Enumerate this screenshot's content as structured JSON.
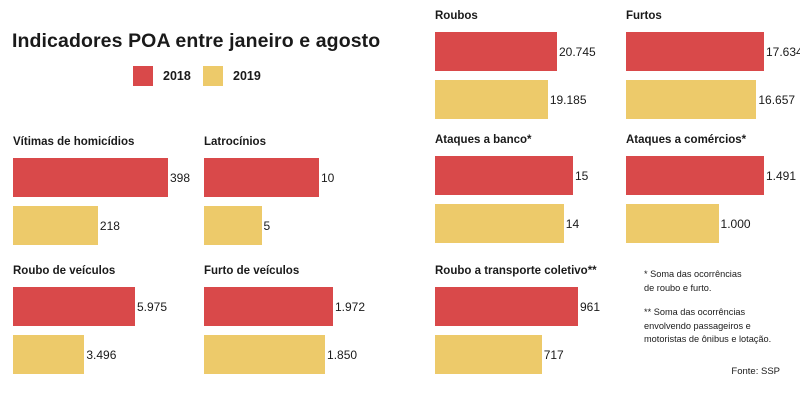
{
  "title": "Indicadores POA entre janeiro e agosto",
  "legend": [
    {
      "label": "2018",
      "color": "#d9494a"
    },
    {
      "label": "2019",
      "color": "#edca6a"
    }
  ],
  "chart_data": [
    {
      "type": "bar",
      "title": "Roubos",
      "categories": [
        "2018",
        "2019"
      ],
      "values": [
        20745,
        19185
      ],
      "value_labels": [
        "20.745",
        "19.185"
      ]
    },
    {
      "type": "bar",
      "title": "Furtos",
      "categories": [
        "2018",
        "2019"
      ],
      "values": [
        17634,
        16657
      ],
      "value_labels": [
        "17.634",
        "16.657"
      ]
    },
    {
      "type": "bar",
      "title": "Vítimas de homicídios",
      "categories": [
        "2018",
        "2019"
      ],
      "values": [
        398,
        218
      ],
      "value_labels": [
        "398",
        "218"
      ]
    },
    {
      "type": "bar",
      "title": "Latrocínios",
      "categories": [
        "2018",
        "2019"
      ],
      "values": [
        10,
        5
      ],
      "value_labels": [
        "10",
        "5"
      ]
    },
    {
      "type": "bar",
      "title": "Ataques a banco*",
      "categories": [
        "2018",
        "2019"
      ],
      "values": [
        15,
        14
      ],
      "value_labels": [
        "15",
        "14"
      ]
    },
    {
      "type": "bar",
      "title": "Ataques a comércios*",
      "categories": [
        "2018",
        "2019"
      ],
      "values": [
        1491,
        1000
      ],
      "value_labels": [
        "1.491",
        "1.000"
      ]
    },
    {
      "type": "bar",
      "title": "Roubo de veículos",
      "categories": [
        "2018",
        "2019"
      ],
      "values": [
        5975,
        3496
      ],
      "value_labels": [
        "5.975",
        "3.496"
      ]
    },
    {
      "type": "bar",
      "title": "Furto de veículos",
      "categories": [
        "2018",
        "2019"
      ],
      "values": [
        1972,
        1850
      ],
      "value_labels": [
        "1.972",
        "1.850"
      ]
    },
    {
      "type": "bar",
      "title": "Roubo a transporte coletivo**",
      "categories": [
        "2018",
        "2019"
      ],
      "values": [
        961,
        717
      ],
      "value_labels": [
        "961",
        "717"
      ]
    }
  ],
  "notes": {
    "note1_line1": "* Soma das ocorrências",
    "note1_line2": "de roubo e furto.",
    "note2_line1": "** Soma das ocorrências",
    "note2_line2": "envolvendo passageiros e",
    "note2_line3": "motoristas de ônibus e lotação."
  },
  "source": "Fonte: SSP"
}
